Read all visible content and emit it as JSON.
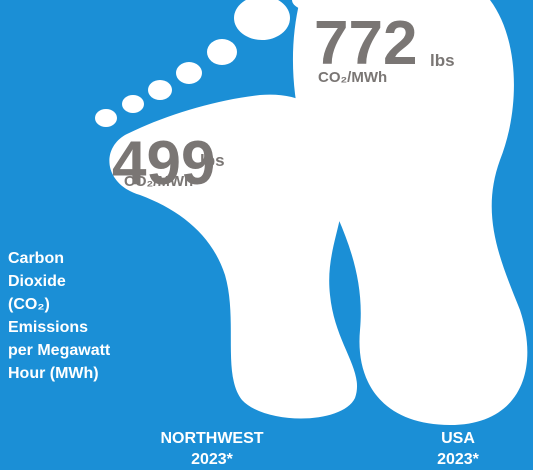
{
  "caption": {
    "lines": [
      "Carbon",
      "Dioxide",
      "(CO₂)",
      "Emissions",
      "per Megawatt",
      "Hour (MWh)"
    ]
  },
  "items": [
    {
      "value": 499,
      "unit": "lbs",
      "per": "CO₂/MWh",
      "region": "NORTHWEST",
      "year": "2023*"
    },
    {
      "value": 772,
      "unit": "lbs",
      "per": "CO₂/MWh",
      "region": "USA",
      "year": "2023*"
    }
  ]
}
